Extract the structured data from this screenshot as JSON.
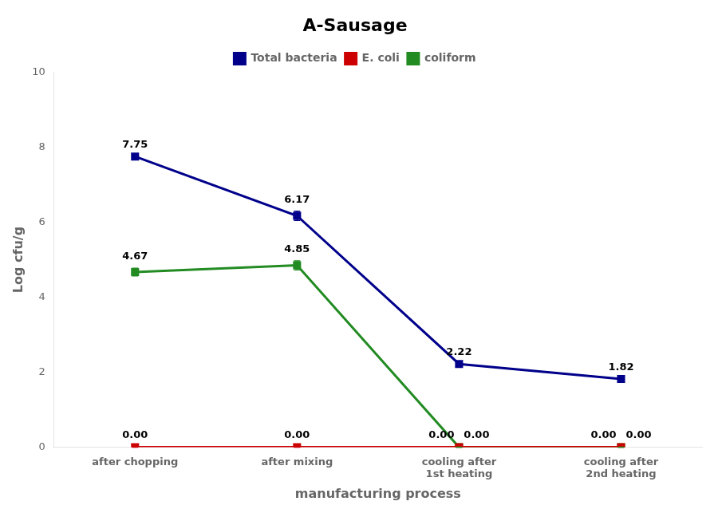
{
  "chart_data": {
    "type": "line",
    "title": "A-Sausage",
    "xlabel": "manufacturing process",
    "ylabel": "Log cfu/g",
    "categories": [
      "after chopping",
      "after mixing",
      "cooling after\n1st heating",
      "cooling after\n2nd heating"
    ],
    "series": [
      {
        "name": "Total bacteria",
        "color": "#00008B",
        "marker": "square",
        "line_style": "solid",
        "values": [
          7.75,
          6.17,
          2.22,
          1.82
        ],
        "errors": [
          0.0,
          0.12,
          0.0,
          0.0
        ],
        "value_labels": [
          "7.75",
          "6.17",
          "2.22",
          "1.82"
        ]
      },
      {
        "name": "E. coli",
        "color": "#CC0000",
        "marker": "square",
        "line_style": "solid",
        "values": [
          0.0,
          0.0,
          0.0,
          0.0
        ],
        "errors": [
          0.0,
          0.0,
          0.0,
          0.0
        ],
        "value_labels": [
          "0.00",
          "0.00",
          "0.00",
          "0.00"
        ]
      },
      {
        "name": "coliform",
        "color": "#228B22",
        "marker": "square",
        "line_style": "solid",
        "values": [
          4.67,
          4.85,
          0.0,
          0.0
        ],
        "errors": [
          0.1,
          0.12,
          0.0,
          0.0
        ],
        "value_labels": [
          "4.67",
          "4.85",
          "0.00",
          "0.00"
        ]
      }
    ],
    "ylim": [
      0,
      10
    ],
    "yticks": [
      0,
      2,
      4,
      6,
      8,
      10
    ],
    "grid": false,
    "legend": "top",
    "data_labels": true
  }
}
